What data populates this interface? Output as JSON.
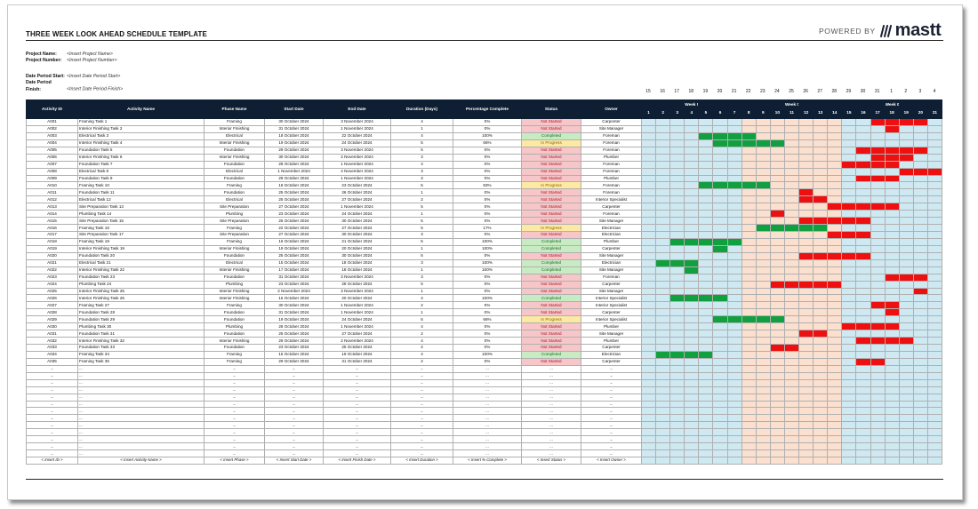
{
  "brand": {
    "powered_by": "POWERED BY",
    "name": "mastt"
  },
  "title": "THREE WEEK LOOK AHEAD SCHEDULE TEMPLATE",
  "project": [
    {
      "label": "Project Name:",
      "value": "<Insert Project Name>"
    },
    {
      "label": "Project Number:",
      "value": "<Insert Project Number>"
    }
  ],
  "period": [
    {
      "label": "Date Period Start:",
      "value": "<Insert Date Period Start>"
    },
    {
      "label": "Date Period Finish:",
      "value": "<Insert Date Period Finish>"
    }
  ],
  "columns": [
    "Activity ID",
    "Activity Name",
    "Phase Name",
    "Start Date",
    "End Date",
    "Duration (Days)",
    "Percentage Complete",
    "Status",
    "Owner"
  ],
  "date_row": [
    "15",
    "16",
    "17",
    "18",
    "19",
    "20",
    "21",
    "22",
    "23",
    "24",
    "25",
    "26",
    "27",
    "28",
    "29",
    "30",
    "31",
    "1",
    "2",
    "3",
    "4"
  ],
  "weeks": [
    {
      "label": "Week 01",
      "days": [
        "1",
        "2",
        "3",
        "4",
        "5",
        "6",
        "7"
      ]
    },
    {
      "label": "Week 02",
      "days": [
        "8",
        "9",
        "10",
        "11",
        "12",
        "13",
        "14"
      ]
    },
    {
      "label": "Week 03",
      "days": [
        "15",
        "16",
        "17",
        "18",
        "19",
        "20",
        "21"
      ]
    }
  ],
  "rows": [
    {
      "id": "A001",
      "name": "Framing Task 1",
      "phase": "Framing",
      "start": "30 October 2024",
      "end": "3 November 2024",
      "dur": "4",
      "pct": "0%",
      "status": "Not Started",
      "owner": "Carpenter",
      "bar": [
        16,
        20
      ]
    },
    {
      "id": "A002",
      "name": "Interior Finishing Task 2",
      "phase": "Interior Finishing",
      "start": "31 October 2024",
      "end": "1 November 2024",
      "dur": "1",
      "pct": "0%",
      "status": "Not Started",
      "owner": "Site Manager",
      "bar": [
        17,
        18
      ]
    },
    {
      "id": "A003",
      "name": "Electrical Task 3",
      "phase": "Electrical",
      "start": "18 October 2024",
      "end": "22 October 2024",
      "dur": "4",
      "pct": "100%",
      "status": "Completed",
      "owner": "Foreman",
      "bar": [
        4,
        8
      ]
    },
    {
      "id": "A004",
      "name": "Interior Finishing Task 4",
      "phase": "Interior Finishing",
      "start": "19 October 2024",
      "end": "24 October 2024",
      "dur": "5",
      "pct": "66%",
      "status": "In Progress",
      "owner": "Foreman",
      "bar": [
        5,
        10
      ]
    },
    {
      "id": "A005",
      "name": "Foundation Task 5",
      "phase": "Foundation",
      "start": "29 October 2024",
      "end": "3 November 2024",
      "dur": "5",
      "pct": "0%",
      "status": "Not Started",
      "owner": "Foreman",
      "bar": [
        15,
        20
      ]
    },
    {
      "id": "A006",
      "name": "Interior Finishing Task 6",
      "phase": "Interior Finishing",
      "start": "30 October 2024",
      "end": "2 November 2024",
      "dur": "3",
      "pct": "0%",
      "status": "Not Started",
      "owner": "Plumber",
      "bar": [
        16,
        19
      ]
    },
    {
      "id": "A007",
      "name": "Foundation Task 7",
      "phase": "Foundation",
      "start": "28 October 2024",
      "end": "1 November 2024",
      "dur": "4",
      "pct": "0%",
      "status": "Not Started",
      "owner": "Foreman",
      "bar": [
        14,
        18
      ]
    },
    {
      "id": "A008",
      "name": "Electrical Task 8",
      "phase": "Electrical",
      "start": "1 November 2024",
      "end": "4 November 2024",
      "dur": "3",
      "pct": "0%",
      "status": "Not Started",
      "owner": "Foreman",
      "bar": [
        18,
        21
      ]
    },
    {
      "id": "A009",
      "name": "Foundation Task 9",
      "phase": "Foundation",
      "start": "29 October 2024",
      "end": "1 November 2024",
      "dur": "3",
      "pct": "0%",
      "status": "Not Started",
      "owner": "Plumber",
      "bar": [
        15,
        18
      ]
    },
    {
      "id": "A010",
      "name": "Framing Task 10",
      "phase": "Framing",
      "start": "18 October 2024",
      "end": "23 October 2024",
      "dur": "5",
      "pct": "83%",
      "status": "In Progress",
      "owner": "Foreman",
      "bar": [
        4,
        9
      ]
    },
    {
      "id": "A011",
      "name": "Foundation Task 11",
      "phase": "Foundation",
      "start": "25 October 2024",
      "end": "26 October 2024",
      "dur": "1",
      "pct": "0%",
      "status": "Not Started",
      "owner": "Foreman",
      "bar": [
        11,
        12
      ]
    },
    {
      "id": "A012",
      "name": "Electrical Task 12",
      "phase": "Electrical",
      "start": "25 October 2024",
      "end": "27 October 2024",
      "dur": "2",
      "pct": "0%",
      "status": "Not Started",
      "owner": "Interior Specialist",
      "bar": [
        11,
        13
      ]
    },
    {
      "id": "A013",
      "name": "Site Preparation Task 13",
      "phase": "Site Preparation",
      "start": "27 October 2024",
      "end": "1 November 2024",
      "dur": "5",
      "pct": "0%",
      "status": "Not Started",
      "owner": "Carpenter",
      "bar": [
        13,
        18
      ]
    },
    {
      "id": "A014",
      "name": "Plumbing Task 14",
      "phase": "Plumbing",
      "start": "23 October 2024",
      "end": "24 October 2024",
      "dur": "1",
      "pct": "0%",
      "status": "Not Started",
      "owner": "Foreman",
      "bar": [
        9,
        10
      ]
    },
    {
      "id": "A015",
      "name": "Site Preparation Task 15",
      "phase": "Site Preparation",
      "start": "25 October 2024",
      "end": "30 October 2024",
      "dur": "5",
      "pct": "0%",
      "status": "Not Started",
      "owner": "Site Manager",
      "bar": [
        11,
        16
      ]
    },
    {
      "id": "A016",
      "name": "Framing Task 16",
      "phase": "Framing",
      "start": "22 October 2024",
      "end": "27 October 2024",
      "dur": "5",
      "pct": "17%",
      "status": "In Progress",
      "owner": "Electrician",
      "bar": [
        8,
        13
      ]
    },
    {
      "id": "A017",
      "name": "Site Preparation Task 17",
      "phase": "Site Preparation",
      "start": "27 October 2024",
      "end": "30 October 2024",
      "dur": "3",
      "pct": "0%",
      "status": "Not Started",
      "owner": "Electrician",
      "bar": [
        13,
        16
      ]
    },
    {
      "id": "A018",
      "name": "Framing Task 18",
      "phase": "Framing",
      "start": "16 October 2024",
      "end": "21 October 2024",
      "dur": "5",
      "pct": "100%",
      "status": "Completed",
      "owner": "Plumber",
      "bar": [
        2,
        7
      ]
    },
    {
      "id": "A019",
      "name": "Interior Finishing Task 19",
      "phase": "Interior Finishing",
      "start": "19 October 2024",
      "end": "20 October 2024",
      "dur": "1",
      "pct": "100%",
      "status": "Completed",
      "owner": "Carpenter",
      "bar": [
        5,
        6
      ]
    },
    {
      "id": "A020",
      "name": "Foundation Task 20",
      "phase": "Foundation",
      "start": "25 October 2024",
      "end": "30 October 2024",
      "dur": "5",
      "pct": "0%",
      "status": "Not Started",
      "owner": "Site Manager",
      "bar": [
        11,
        16
      ]
    },
    {
      "id": "A021",
      "name": "Electrical Task 21",
      "phase": "Electrical",
      "start": "15 October 2024",
      "end": "18 October 2024",
      "dur": "3",
      "pct": "100%",
      "status": "Completed",
      "owner": "Electrician",
      "bar": [
        1,
        4
      ]
    },
    {
      "id": "A022",
      "name": "Interior Finishing Task 22",
      "phase": "Interior Finishing",
      "start": "17 October 2024",
      "end": "18 October 2024",
      "dur": "1",
      "pct": "100%",
      "status": "Completed",
      "owner": "Site Manager",
      "bar": [
        3,
        4
      ]
    },
    {
      "id": "A023",
      "name": "Foundation Task 23",
      "phase": "Foundation",
      "start": "31 October 2024",
      "end": "3 November 2024",
      "dur": "3",
      "pct": "0%",
      "status": "Not Started",
      "owner": "Foreman",
      "bar": [
        17,
        20
      ]
    },
    {
      "id": "A024",
      "name": "Plumbing Task 24",
      "phase": "Plumbing",
      "start": "23 October 2024",
      "end": "28 October 2024",
      "dur": "5",
      "pct": "0%",
      "status": "Not Started",
      "owner": "Carpenter",
      "bar": [
        9,
        14
      ]
    },
    {
      "id": "A025",
      "name": "Interior Finishing Task 25",
      "phase": "Interior Finishing",
      "start": "2 November 2024",
      "end": "3 November 2024",
      "dur": "1",
      "pct": "0%",
      "status": "Not Started",
      "owner": "Site Manager",
      "bar": [
        19,
        20
      ]
    },
    {
      "id": "A026",
      "name": "Interior Finishing Task 26",
      "phase": "Interior Finishing",
      "start": "16 October 2024",
      "end": "20 October 2024",
      "dur": "4",
      "pct": "100%",
      "status": "Completed",
      "owner": "Interior Specialist",
      "bar": [
        2,
        6
      ]
    },
    {
      "id": "A027",
      "name": "Framing Task 27",
      "phase": "Framing",
      "start": "30 October 2024",
      "end": "1 November 2024",
      "dur": "2",
      "pct": "0%",
      "status": "Not Started",
      "owner": "Interior Specialist",
      "bar": [
        16,
        18
      ]
    },
    {
      "id": "A028",
      "name": "Foundation Task 28",
      "phase": "Foundation",
      "start": "31 October 2024",
      "end": "1 November 2024",
      "dur": "1",
      "pct": "0%",
      "status": "Not Started",
      "owner": "Carpenter",
      "bar": [
        17,
        18
      ]
    },
    {
      "id": "A029",
      "name": "Foundation Task 29",
      "phase": "Foundation",
      "start": "19 October 2024",
      "end": "24 October 2024",
      "dur": "5",
      "pct": "66%",
      "status": "In Progress",
      "owner": "Interior Specialist",
      "bar": [
        5,
        10
      ]
    },
    {
      "id": "A030",
      "name": "Plumbing Task 30",
      "phase": "Plumbing",
      "start": "28 October 2024",
      "end": "1 November 2024",
      "dur": "4",
      "pct": "0%",
      "status": "Not Started",
      "owner": "Plumber",
      "bar": [
        14,
        18
      ]
    },
    {
      "id": "A031",
      "name": "Foundation Task 31",
      "phase": "Foundation",
      "start": "25 October 2024",
      "end": "27 October 2024",
      "dur": "2",
      "pct": "0%",
      "status": "Not Started",
      "owner": "Site Manager",
      "bar": [
        11,
        13
      ]
    },
    {
      "id": "A032",
      "name": "Interior Finishing Task 32",
      "phase": "Interior Finishing",
      "start": "29 October 2024",
      "end": "2 November 2024",
      "dur": "4",
      "pct": "0%",
      "status": "Not Started",
      "owner": "Plumber",
      "bar": [
        15,
        19
      ]
    },
    {
      "id": "A033",
      "name": "Foundation Task 33",
      "phase": "Foundation",
      "start": "23 October 2024",
      "end": "25 October 2024",
      "dur": "2",
      "pct": "0%",
      "status": "Not Started",
      "owner": "Carpenter",
      "bar": [
        9,
        11
      ]
    },
    {
      "id": "A034",
      "name": "Framing Task 34",
      "phase": "Framing",
      "start": "15 October 2024",
      "end": "19 October 2024",
      "dur": "4",
      "pct": "100%",
      "status": "Completed",
      "owner": "Electrician",
      "bar": [
        1,
        5
      ]
    },
    {
      "id": "A035",
      "name": "Framing Task 35",
      "phase": "Framing",
      "start": "29 October 2024",
      "end": "31 October 2024",
      "dur": "2",
      "pct": "0%",
      "status": "Not Started",
      "owner": "Carpenter",
      "bar": [
        15,
        17
      ]
    }
  ],
  "empty_rows": 13,
  "placeholder": "...",
  "footer": [
    "< Insert ID >",
    "< Insert Activity Name >",
    "< Insert Phase >",
    "< Insert Start Date >",
    "< Insert Finish Date >",
    "< Insert Duration >",
    "< Insert % Complete >",
    "< Insert Status >",
    "< Insert Owner >"
  ],
  "colors": {
    "header": "#0e1f33",
    "bar_pending": "#ee1010",
    "bar_done": "#10a040",
    "week1": "#cfe9f3",
    "week2": "#fbe0cf",
    "week3": "#cfe9f3"
  }
}
